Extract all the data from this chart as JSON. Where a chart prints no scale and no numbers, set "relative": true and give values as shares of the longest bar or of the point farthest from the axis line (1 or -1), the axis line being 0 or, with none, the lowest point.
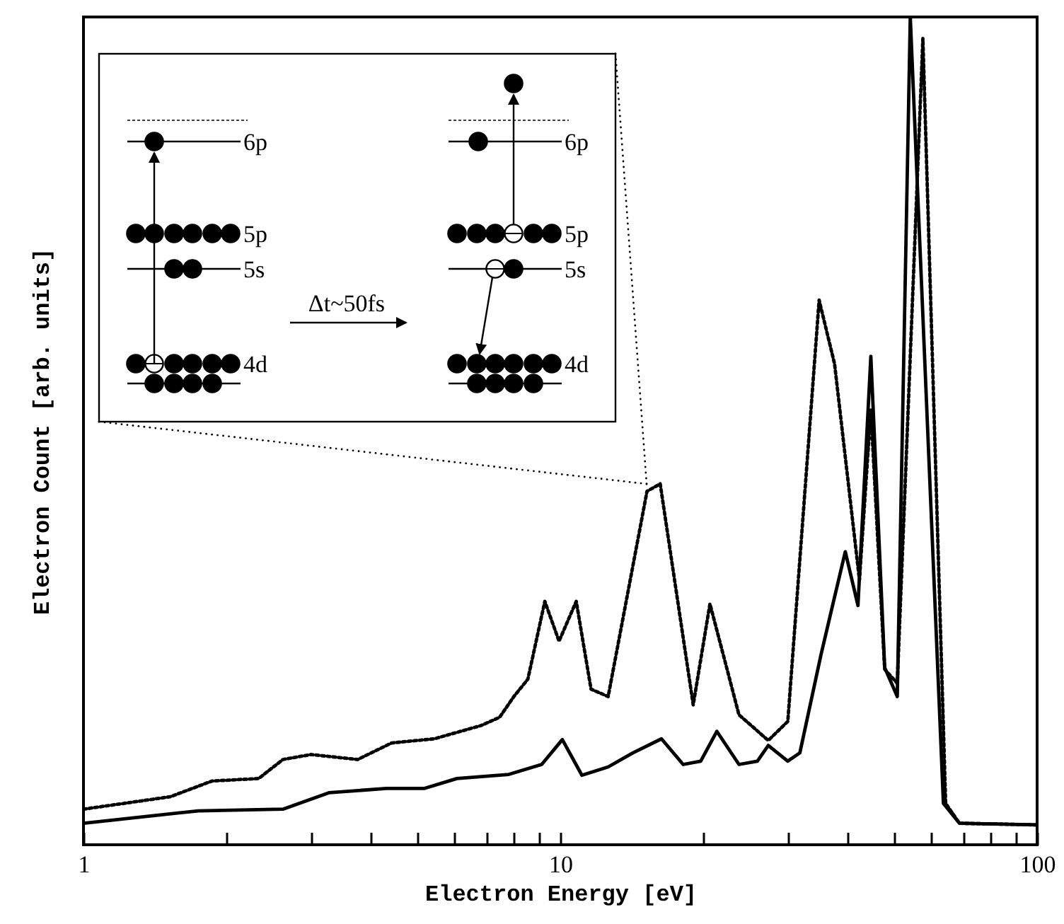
{
  "chart_data": {
    "type": "line",
    "xlabel": "Electron Energy [eV]",
    "ylabel": "Electron Count [arb. units]",
    "relative": true,
    "log": "x",
    "grid": false,
    "xlim": [
      1,
      100
    ],
    "xticks": [
      1,
      {
        "value": 2,
        "label": null
      },
      {
        "value": 3,
        "label": null
      },
      {
        "value": 4,
        "label": null
      },
      {
        "value": 5,
        "label": null
      },
      {
        "value": 6,
        "label": null
      },
      {
        "value": 7,
        "label": null
      },
      {
        "value": 8,
        "label": null
      },
      {
        "value": 9,
        "label": null
      },
      10,
      {
        "value": 20,
        "label": null
      },
      {
        "value": 30,
        "label": null
      },
      {
        "value": 40,
        "label": null
      },
      {
        "value": 50,
        "label": null
      },
      {
        "value": 60,
        "label": null
      },
      {
        "value": 70,
        "label": null
      },
      {
        "value": 80,
        "label": null
      },
      {
        "value": 90,
        "label": null
      },
      100
    ],
    "annotations": [
      "6p",
      "5p",
      "5s",
      "4d",
      "Δt~50fs",
      "6p",
      "5p",
      "5s",
      "4d"
    ],
    "series": [
      {
        "color": "#000000",
        "line_style": "dotted",
        "x": [
          1.0,
          1.52,
          1.86,
          2.33,
          2.62,
          3.0,
          3.76,
          4.43,
          5.44,
          6.82,
          7.46,
          7.99,
          8.55,
          9.28,
          9.94,
          10.8,
          11.6,
          12.6,
          15.2,
          16.2,
          19.0,
          20.6,
          23.7,
          27.3,
          30.0,
          34.9,
          37.6,
          42.4,
          44.8,
          47.9,
          50.9,
          57.6,
          64.3,
          68.7,
          100
        ],
        "values": [
          0.043,
          0.058,
          0.077,
          0.08,
          0.103,
          0.109,
          0.103,
          0.123,
          0.128,
          0.144,
          0.154,
          0.179,
          0.2,
          0.294,
          0.246,
          0.294,
          0.188,
          0.179,
          0.427,
          0.436,
          0.169,
          0.291,
          0.157,
          0.126,
          0.149,
          0.658,
          0.581,
          0.32,
          0.525,
          0.212,
          0.195,
          0.974,
          0.05,
          0.026,
          0.024
        ]
      },
      {
        "color": "#000000",
        "line_style": "solid",
        "x": [
          1.0,
          1.74,
          2.62,
          3.28,
          4.32,
          5.18,
          6.07,
          7.8,
          9.14,
          10.1,
          11.1,
          12.6,
          14.2,
          16.3,
          18.1,
          19.7,
          21.3,
          23.7,
          25.9,
          27.3,
          30.0,
          31.8,
          35.2,
          37.1,
          39.6,
          42.1,
          44.8,
          47.9,
          50.9,
          54.2,
          63.6,
          68.7,
          100
        ],
        "values": [
          0.026,
          0.041,
          0.043,
          0.063,
          0.068,
          0.068,
          0.08,
          0.085,
          0.097,
          0.127,
          0.084,
          0.094,
          0.111,
          0.128,
          0.097,
          0.101,
          0.137,
          0.097,
          0.101,
          0.12,
          0.101,
          0.111,
          0.229,
          0.285,
          0.354,
          0.289,
          0.59,
          0.214,
          0.179,
          1.0,
          0.05,
          0.026,
          0.024
        ]
      }
    ]
  }
}
